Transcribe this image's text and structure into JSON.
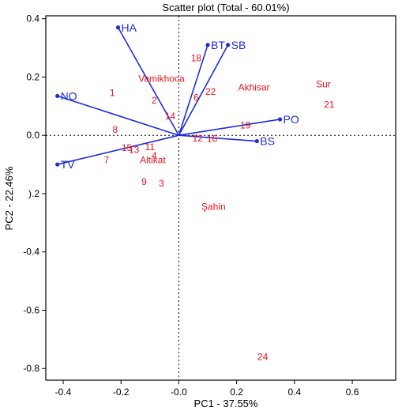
{
  "chart_data": {
    "type": "scatter",
    "title": "Scatter plot (Total - 60.01%)",
    "xlabel": "PC1 - 37.55%",
    "ylabel": "PC2 - 22.46%",
    "xlim": [
      -0.46,
      0.75
    ],
    "ylim": [
      -0.84,
      0.41
    ],
    "x_ticks": [
      {
        "value": -0.4,
        "label": "-0.4"
      },
      {
        "value": -0.2,
        "label": "-0.2"
      },
      {
        "value": 0.0,
        "label": "-0.0"
      },
      {
        "value": 0.2,
        "label": "0.2"
      },
      {
        "value": 0.4,
        "label": "0.4"
      },
      {
        "value": 0.6,
        "label": "0.6"
      }
    ],
    "y_ticks": [
      {
        "value": 0.4,
        "label": "0.4"
      },
      {
        "value": 0.2,
        "label": "0.2"
      },
      {
        "value": 0.0,
        "label": "0.0"
      },
      {
        "value": -0.2,
        "label": ").2"
      },
      {
        "value": -0.4,
        "label": "-0.4"
      },
      {
        "value": -0.6,
        "label": "-0.6"
      },
      {
        "value": -0.8,
        "label": "-0.8"
      }
    ],
    "grid": false,
    "zero_lines": true,
    "colors": {
      "loading": "#1f2bd9",
      "observation": "#e8131c",
      "axis": "#000000"
    },
    "loadings": [
      {
        "label": "HA",
        "x": -0.21,
        "y": 0.37
      },
      {
        "label": "BT",
        "x": 0.1,
        "y": 0.31
      },
      {
        "label": "SB",
        "x": 0.17,
        "y": 0.31
      },
      {
        "label": "NO",
        "x": -0.42,
        "y": 0.135
      },
      {
        "label": "PO",
        "x": 0.35,
        "y": 0.055
      },
      {
        "label": "BS",
        "x": 0.27,
        "y": -0.02
      },
      {
        "label": "TV",
        "x": -0.42,
        "y": -0.1
      }
    ],
    "observations": [
      {
        "label": "1",
        "x": -0.23,
        "y": 0.145
      },
      {
        "label": "2",
        "x": -0.085,
        "y": 0.12
      },
      {
        "label": "3",
        "x": -0.06,
        "y": -0.165
      },
      {
        "label": "7",
        "x": -0.25,
        "y": -0.085
      },
      {
        "label": "8",
        "x": -0.22,
        "y": 0.02
      },
      {
        "label": "9",
        "x": -0.12,
        "y": -0.16
      },
      {
        "label": "11",
        "x": -0.1,
        "y": -0.04
      },
      {
        "label": "12",
        "x": 0.065,
        "y": -0.01
      },
      {
        "label": "13",
        "x": -0.155,
        "y": -0.05
      },
      {
        "label": "14",
        "x": -0.03,
        "y": 0.065
      },
      {
        "label": "15",
        "x": -0.18,
        "y": -0.043
      },
      {
        "label": "16",
        "x": 0.115,
        "y": -0.012
      },
      {
        "label": "18",
        "x": 0.06,
        "y": 0.265
      },
      {
        "label": "19",
        "x": 0.23,
        "y": 0.035
      },
      {
        "label": "21",
        "x": 0.52,
        "y": 0.105
      },
      {
        "label": "22",
        "x": 0.11,
        "y": 0.15
      },
      {
        "label": "24",
        "x": 0.29,
        "y": -0.76
      },
      {
        "label": "6",
        "x": 0.06,
        "y": 0.13
      },
      {
        "label": "4",
        "x": -0.085,
        "y": -0.07
      },
      {
        "label": "Vamikhoca",
        "x": -0.06,
        "y": 0.195
      },
      {
        "label": "Akhisar",
        "x": 0.26,
        "y": 0.165
      },
      {
        "label": "Sur",
        "x": 0.5,
        "y": 0.175
      },
      {
        "label": "Altikat",
        "x": -0.09,
        "y": -0.085
      },
      {
        "label": "Şahin",
        "x": 0.12,
        "y": -0.245
      }
    ]
  }
}
